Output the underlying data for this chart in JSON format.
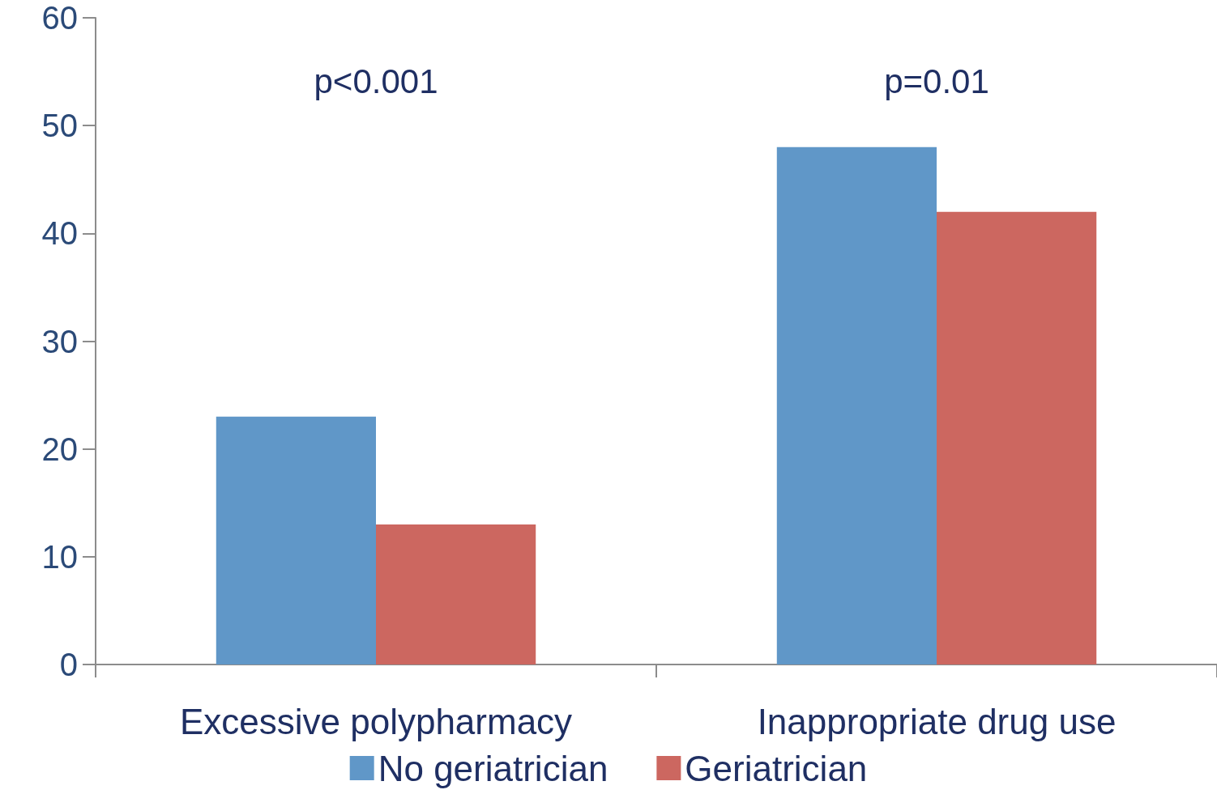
{
  "chart_data": {
    "type": "bar",
    "categories": [
      "Excessive polypharmacy",
      "Inappropriate drug use"
    ],
    "series": [
      {
        "name": "No geriatrician",
        "color": "#6097c8",
        "values": [
          23,
          48
        ]
      },
      {
        "name": "Geriatrician",
        "color": "#cc6760",
        "values": [
          13,
          42
        ]
      }
    ],
    "ylim": [
      0,
      60
    ],
    "yticks": [
      0,
      10,
      20,
      30,
      40,
      50,
      60
    ],
    "grid": false,
    "legend": "bottom",
    "annotations": [
      "p<0.001",
      "p=0.01"
    ]
  }
}
